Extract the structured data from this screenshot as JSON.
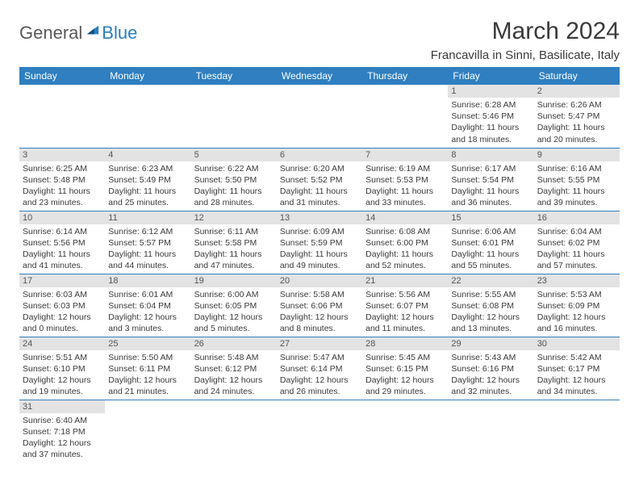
{
  "logo": {
    "part1": "General",
    "part2": "Blue"
  },
  "title": "March 2024",
  "location": "Francavilla in Sinni, Basilicate, Italy",
  "colors": {
    "header_bg": "#2f7fc1",
    "header_text": "#ffffff",
    "daynum_bg": "#e3e3e3",
    "cell_border": "#2f7fc1",
    "text": "#3a3a3a",
    "logo_gray": "#5a5a5a",
    "logo_blue": "#2a7fbf"
  },
  "weekdays": [
    "Sunday",
    "Monday",
    "Tuesday",
    "Wednesday",
    "Thursday",
    "Friday",
    "Saturday"
  ],
  "weeks": [
    [
      null,
      null,
      null,
      null,
      null,
      {
        "n": "1",
        "sr": "Sunrise: 6:28 AM",
        "ss": "Sunset: 5:46 PM",
        "dl1": "Daylight: 11 hours",
        "dl2": "and 18 minutes."
      },
      {
        "n": "2",
        "sr": "Sunrise: 6:26 AM",
        "ss": "Sunset: 5:47 PM",
        "dl1": "Daylight: 11 hours",
        "dl2": "and 20 minutes."
      }
    ],
    [
      {
        "n": "3",
        "sr": "Sunrise: 6:25 AM",
        "ss": "Sunset: 5:48 PM",
        "dl1": "Daylight: 11 hours",
        "dl2": "and 23 minutes."
      },
      {
        "n": "4",
        "sr": "Sunrise: 6:23 AM",
        "ss": "Sunset: 5:49 PM",
        "dl1": "Daylight: 11 hours",
        "dl2": "and 25 minutes."
      },
      {
        "n": "5",
        "sr": "Sunrise: 6:22 AM",
        "ss": "Sunset: 5:50 PM",
        "dl1": "Daylight: 11 hours",
        "dl2": "and 28 minutes."
      },
      {
        "n": "6",
        "sr": "Sunrise: 6:20 AM",
        "ss": "Sunset: 5:52 PM",
        "dl1": "Daylight: 11 hours",
        "dl2": "and 31 minutes."
      },
      {
        "n": "7",
        "sr": "Sunrise: 6:19 AM",
        "ss": "Sunset: 5:53 PM",
        "dl1": "Daylight: 11 hours",
        "dl2": "and 33 minutes."
      },
      {
        "n": "8",
        "sr": "Sunrise: 6:17 AM",
        "ss": "Sunset: 5:54 PM",
        "dl1": "Daylight: 11 hours",
        "dl2": "and 36 minutes."
      },
      {
        "n": "9",
        "sr": "Sunrise: 6:16 AM",
        "ss": "Sunset: 5:55 PM",
        "dl1": "Daylight: 11 hours",
        "dl2": "and 39 minutes."
      }
    ],
    [
      {
        "n": "10",
        "sr": "Sunrise: 6:14 AM",
        "ss": "Sunset: 5:56 PM",
        "dl1": "Daylight: 11 hours",
        "dl2": "and 41 minutes."
      },
      {
        "n": "11",
        "sr": "Sunrise: 6:12 AM",
        "ss": "Sunset: 5:57 PM",
        "dl1": "Daylight: 11 hours",
        "dl2": "and 44 minutes."
      },
      {
        "n": "12",
        "sr": "Sunrise: 6:11 AM",
        "ss": "Sunset: 5:58 PM",
        "dl1": "Daylight: 11 hours",
        "dl2": "and 47 minutes."
      },
      {
        "n": "13",
        "sr": "Sunrise: 6:09 AM",
        "ss": "Sunset: 5:59 PM",
        "dl1": "Daylight: 11 hours",
        "dl2": "and 49 minutes."
      },
      {
        "n": "14",
        "sr": "Sunrise: 6:08 AM",
        "ss": "Sunset: 6:00 PM",
        "dl1": "Daylight: 11 hours",
        "dl2": "and 52 minutes."
      },
      {
        "n": "15",
        "sr": "Sunrise: 6:06 AM",
        "ss": "Sunset: 6:01 PM",
        "dl1": "Daylight: 11 hours",
        "dl2": "and 55 minutes."
      },
      {
        "n": "16",
        "sr": "Sunrise: 6:04 AM",
        "ss": "Sunset: 6:02 PM",
        "dl1": "Daylight: 11 hours",
        "dl2": "and 57 minutes."
      }
    ],
    [
      {
        "n": "17",
        "sr": "Sunrise: 6:03 AM",
        "ss": "Sunset: 6:03 PM",
        "dl1": "Daylight: 12 hours",
        "dl2": "and 0 minutes."
      },
      {
        "n": "18",
        "sr": "Sunrise: 6:01 AM",
        "ss": "Sunset: 6:04 PM",
        "dl1": "Daylight: 12 hours",
        "dl2": "and 3 minutes."
      },
      {
        "n": "19",
        "sr": "Sunrise: 6:00 AM",
        "ss": "Sunset: 6:05 PM",
        "dl1": "Daylight: 12 hours",
        "dl2": "and 5 minutes."
      },
      {
        "n": "20",
        "sr": "Sunrise: 5:58 AM",
        "ss": "Sunset: 6:06 PM",
        "dl1": "Daylight: 12 hours",
        "dl2": "and 8 minutes."
      },
      {
        "n": "21",
        "sr": "Sunrise: 5:56 AM",
        "ss": "Sunset: 6:07 PM",
        "dl1": "Daylight: 12 hours",
        "dl2": "and 11 minutes."
      },
      {
        "n": "22",
        "sr": "Sunrise: 5:55 AM",
        "ss": "Sunset: 6:08 PM",
        "dl1": "Daylight: 12 hours",
        "dl2": "and 13 minutes."
      },
      {
        "n": "23",
        "sr": "Sunrise: 5:53 AM",
        "ss": "Sunset: 6:09 PM",
        "dl1": "Daylight: 12 hours",
        "dl2": "and 16 minutes."
      }
    ],
    [
      {
        "n": "24",
        "sr": "Sunrise: 5:51 AM",
        "ss": "Sunset: 6:10 PM",
        "dl1": "Daylight: 12 hours",
        "dl2": "and 19 minutes."
      },
      {
        "n": "25",
        "sr": "Sunrise: 5:50 AM",
        "ss": "Sunset: 6:11 PM",
        "dl1": "Daylight: 12 hours",
        "dl2": "and 21 minutes."
      },
      {
        "n": "26",
        "sr": "Sunrise: 5:48 AM",
        "ss": "Sunset: 6:12 PM",
        "dl1": "Daylight: 12 hours",
        "dl2": "and 24 minutes."
      },
      {
        "n": "27",
        "sr": "Sunrise: 5:47 AM",
        "ss": "Sunset: 6:14 PM",
        "dl1": "Daylight: 12 hours",
        "dl2": "and 26 minutes."
      },
      {
        "n": "28",
        "sr": "Sunrise: 5:45 AM",
        "ss": "Sunset: 6:15 PM",
        "dl1": "Daylight: 12 hours",
        "dl2": "and 29 minutes."
      },
      {
        "n": "29",
        "sr": "Sunrise: 5:43 AM",
        "ss": "Sunset: 6:16 PM",
        "dl1": "Daylight: 12 hours",
        "dl2": "and 32 minutes."
      },
      {
        "n": "30",
        "sr": "Sunrise: 5:42 AM",
        "ss": "Sunset: 6:17 PM",
        "dl1": "Daylight: 12 hours",
        "dl2": "and 34 minutes."
      }
    ],
    [
      {
        "n": "31",
        "sr": "Sunrise: 6:40 AM",
        "ss": "Sunset: 7:18 PM",
        "dl1": "Daylight: 12 hours",
        "dl2": "and 37 minutes."
      },
      null,
      null,
      null,
      null,
      null,
      null
    ]
  ]
}
